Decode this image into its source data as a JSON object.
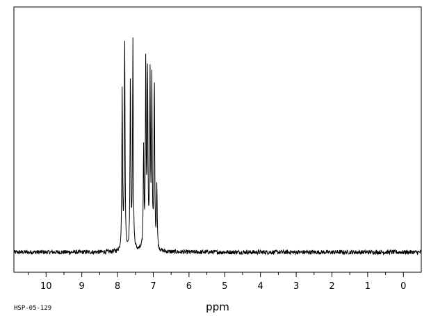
{
  "chart_data": {
    "type": "line",
    "title": "",
    "xlabel": "ppm",
    "ylabel": "",
    "xlim": [
      10.9,
      -0.5
    ],
    "ylim": [
      0,
      1
    ],
    "x_reversed": true,
    "grid": false,
    "baseline": 0.06,
    "x_ticks": [
      {
        "value": 10,
        "label": "10"
      },
      {
        "value": 9,
        "label": "9"
      },
      {
        "value": 8,
        "label": "8"
      },
      {
        "value": 7,
        "label": "7"
      },
      {
        "value": 6,
        "label": "6"
      },
      {
        "value": 5,
        "label": "5"
      },
      {
        "value": 4,
        "label": "4"
      },
      {
        "value": 3,
        "label": "3"
      },
      {
        "value": 2,
        "label": "2"
      },
      {
        "value": 1,
        "label": "1"
      },
      {
        "value": 0,
        "label": "0"
      }
    ],
    "series": [
      {
        "peaks": [
          {
            "ppm": 7.87,
            "height": 0.72
          },
          {
            "ppm": 7.8,
            "height": 0.94
          },
          {
            "ppm": 7.64,
            "height": 0.78
          },
          {
            "ppm": 7.57,
            "height": 0.93
          },
          {
            "ppm": 7.27,
            "height": 0.48
          },
          {
            "ppm": 7.21,
            "height": 0.83
          },
          {
            "ppm": 7.16,
            "height": 0.79
          },
          {
            "ppm": 7.09,
            "height": 0.76
          },
          {
            "ppm": 7.04,
            "height": 0.74
          },
          {
            "ppm": 6.97,
            "height": 0.76
          },
          {
            "ppm": 6.9,
            "height": 0.33
          }
        ]
      }
    ]
  },
  "footer": {
    "sample_id": "HSP-05-129"
  }
}
